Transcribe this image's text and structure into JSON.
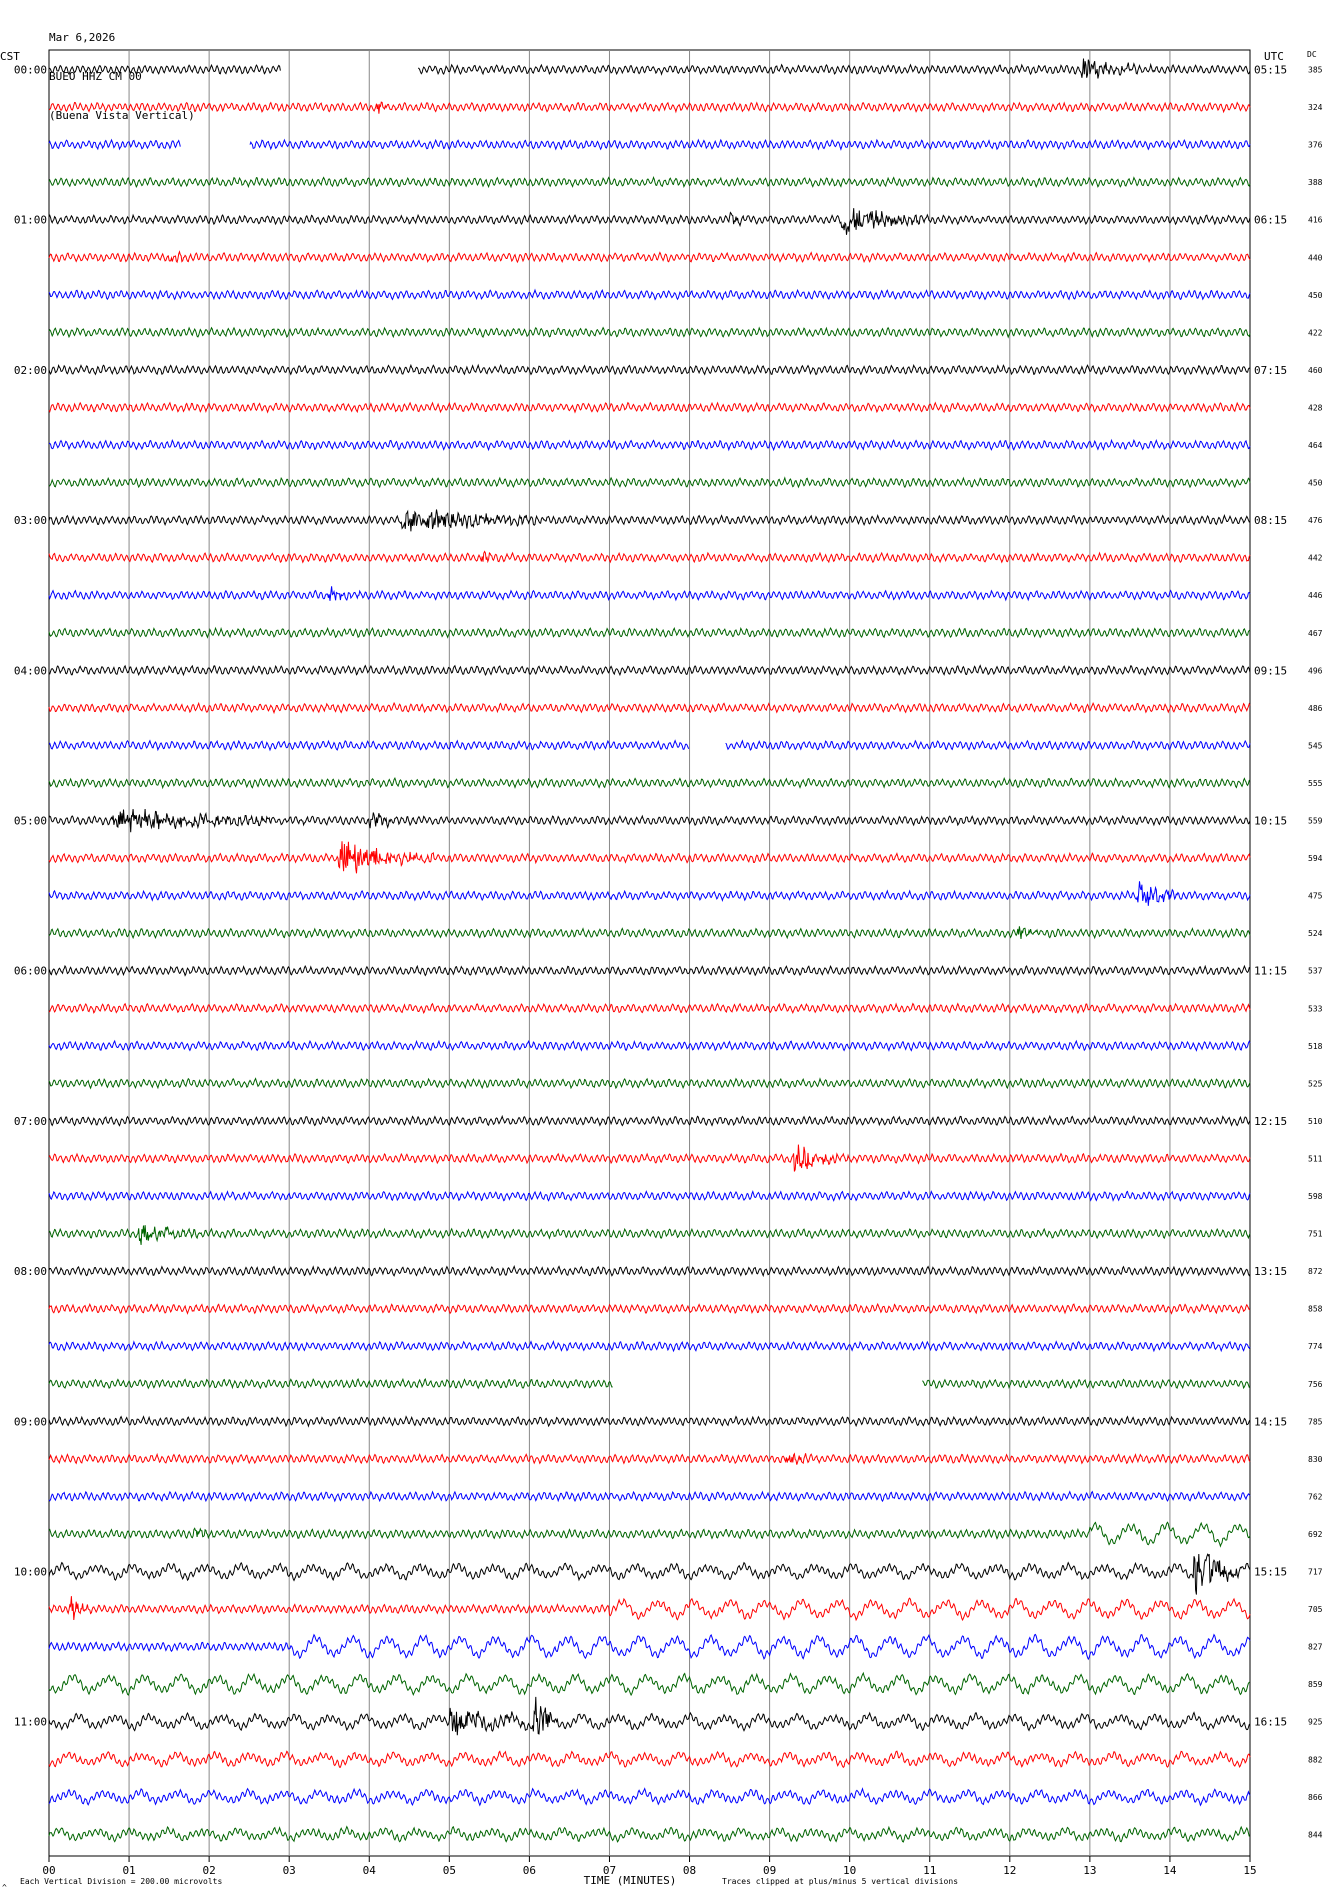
{
  "header": {
    "date": "Mar 6,2026",
    "station": "BUEO HHZ CM 00",
    "location": "(Buena Vista Vertical)"
  },
  "labels": {
    "left_tz": "CST",
    "right_tz": "UTC",
    "dc": "DC"
  },
  "footer": {
    "scale": "Each Vertical Division =  200.00 microvolts",
    "clip": "Traces clipped at plus/minus 5 vertical divisions",
    "mark": "^"
  },
  "colors": [
    "#000000",
    "#ff0000",
    "#0000ff",
    "#006400"
  ],
  "chart_data": {
    "type": "line",
    "xlabel": "TIME (MINUTES)",
    "x_ticks": [
      "00",
      "01",
      "02",
      "03",
      "04",
      "05",
      "06",
      "07",
      "08",
      "09",
      "10",
      "11",
      "12",
      "13",
      "14",
      "15"
    ],
    "xlim": [
      0,
      15
    ],
    "row_count": 48,
    "left_hour_labels": [
      "00:00",
      "01:00",
      "02:00",
      "03:00",
      "04:00",
      "05:00",
      "06:00",
      "07:00",
      "08:00",
      "09:00",
      "10:00",
      "11:00"
    ],
    "right_hour_labels": [
      "05:15",
      "06:15",
      "07:15",
      "08:15",
      "09:15",
      "10:15",
      "11:15",
      "12:15",
      "13:15",
      "14:15",
      "15:15",
      "16:15"
    ],
    "dc_values": [
      385,
      324,
      376,
      388,
      416,
      440,
      450,
      422,
      460,
      428,
      464,
      450,
      476,
      442,
      446,
      467,
      496,
      486,
      545,
      555,
      559,
      594,
      475,
      524,
      537,
      533,
      518,
      525,
      510,
      511,
      598,
      751,
      872,
      858,
      774,
      756,
      785,
      830,
      762,
      692,
      717,
      705,
      827,
      859,
      925,
      882,
      866,
      844
    ],
    "events": [
      {
        "row": 0,
        "minute": 12.9,
        "amp": 0.45,
        "dur": 1.0
      },
      {
        "row": 1,
        "minute": 4.1,
        "amp": 0.3,
        "dur": 0.3
      },
      {
        "row": 4,
        "minute": 8.5,
        "amp": 0.3,
        "dur": 0.3
      },
      {
        "row": 4,
        "minute": 9.9,
        "amp": 0.8,
        "dur": 1.1
      },
      {
        "row": 5,
        "minute": 1.5,
        "amp": 0.3,
        "dur": 0.3
      },
      {
        "row": 12,
        "minute": 4.4,
        "amp": 0.6,
        "dur": 1.8
      },
      {
        "row": 13,
        "minute": 5.4,
        "amp": 0.25,
        "dur": 0.3
      },
      {
        "row": 14,
        "minute": 3.5,
        "amp": 0.35,
        "dur": 0.4
      },
      {
        "row": 20,
        "minute": 0.8,
        "amp": 0.6,
        "dur": 2.5
      },
      {
        "row": 20,
        "minute": 4.0,
        "amp": 0.4,
        "dur": 0.5
      },
      {
        "row": 21,
        "minute": 3.6,
        "amp": 1.0,
        "dur": 1.2
      },
      {
        "row": 22,
        "minute": 13.6,
        "amp": 0.85,
        "dur": 0.5
      },
      {
        "row": 23,
        "minute": 12.1,
        "amp": 0.3,
        "dur": 0.4
      },
      {
        "row": 29,
        "minute": 9.3,
        "amp": 0.6,
        "dur": 0.8
      },
      {
        "row": 31,
        "minute": 1.1,
        "amp": 0.55,
        "dur": 0.8
      },
      {
        "row": 37,
        "minute": 9.2,
        "amp": 0.3,
        "dur": 0.5
      },
      {
        "row": 39,
        "minute": 1.8,
        "amp": 0.3,
        "dur": 0.4
      },
      {
        "row": 40,
        "minute": 14.3,
        "amp": 1.4,
        "dur": 0.6
      },
      {
        "row": 41,
        "minute": 0.25,
        "amp": 0.7,
        "dur": 0.3
      },
      {
        "row": 44,
        "minute": 5.0,
        "amp": 0.7,
        "dur": 1.0
      },
      {
        "row": 44,
        "minute": 6.05,
        "amp": 1.6,
        "dur": 0.3
      }
    ],
    "gaps": [
      {
        "row": 0,
        "from": 2.9,
        "to": 4.6
      },
      {
        "row": 2,
        "from": 1.65,
        "to": 2.5
      },
      {
        "row": 18,
        "from": 8.0,
        "to": 8.45
      },
      {
        "row": 35,
        "from": 7.05,
        "to": 10.9
      }
    ],
    "swell": [
      {
        "row": 39,
        "from": 13.0,
        "to": 15.0,
        "amp": 0.6
      },
      {
        "row": 40,
        "from": 0.0,
        "to": 15.0,
        "amp": 0.35
      },
      {
        "row": 41,
        "from": 7.0,
        "to": 15.0,
        "amp": 0.5
      },
      {
        "row": 42,
        "from": 3.0,
        "to": 15.0,
        "amp": 0.6
      },
      {
        "row": 43,
        "from": 0.0,
        "to": 15.0,
        "amp": 0.5
      },
      {
        "row": 44,
        "from": 0.0,
        "to": 15.0,
        "amp": 0.35
      },
      {
        "row": 45,
        "from": 0.0,
        "to": 15.0,
        "amp": 0.3
      },
      {
        "row": 46,
        "from": 0.0,
        "to": 15.0,
        "amp": 0.3
      },
      {
        "row": 47,
        "from": 0.0,
        "to": 15.0,
        "amp": 0.25
      }
    ]
  }
}
